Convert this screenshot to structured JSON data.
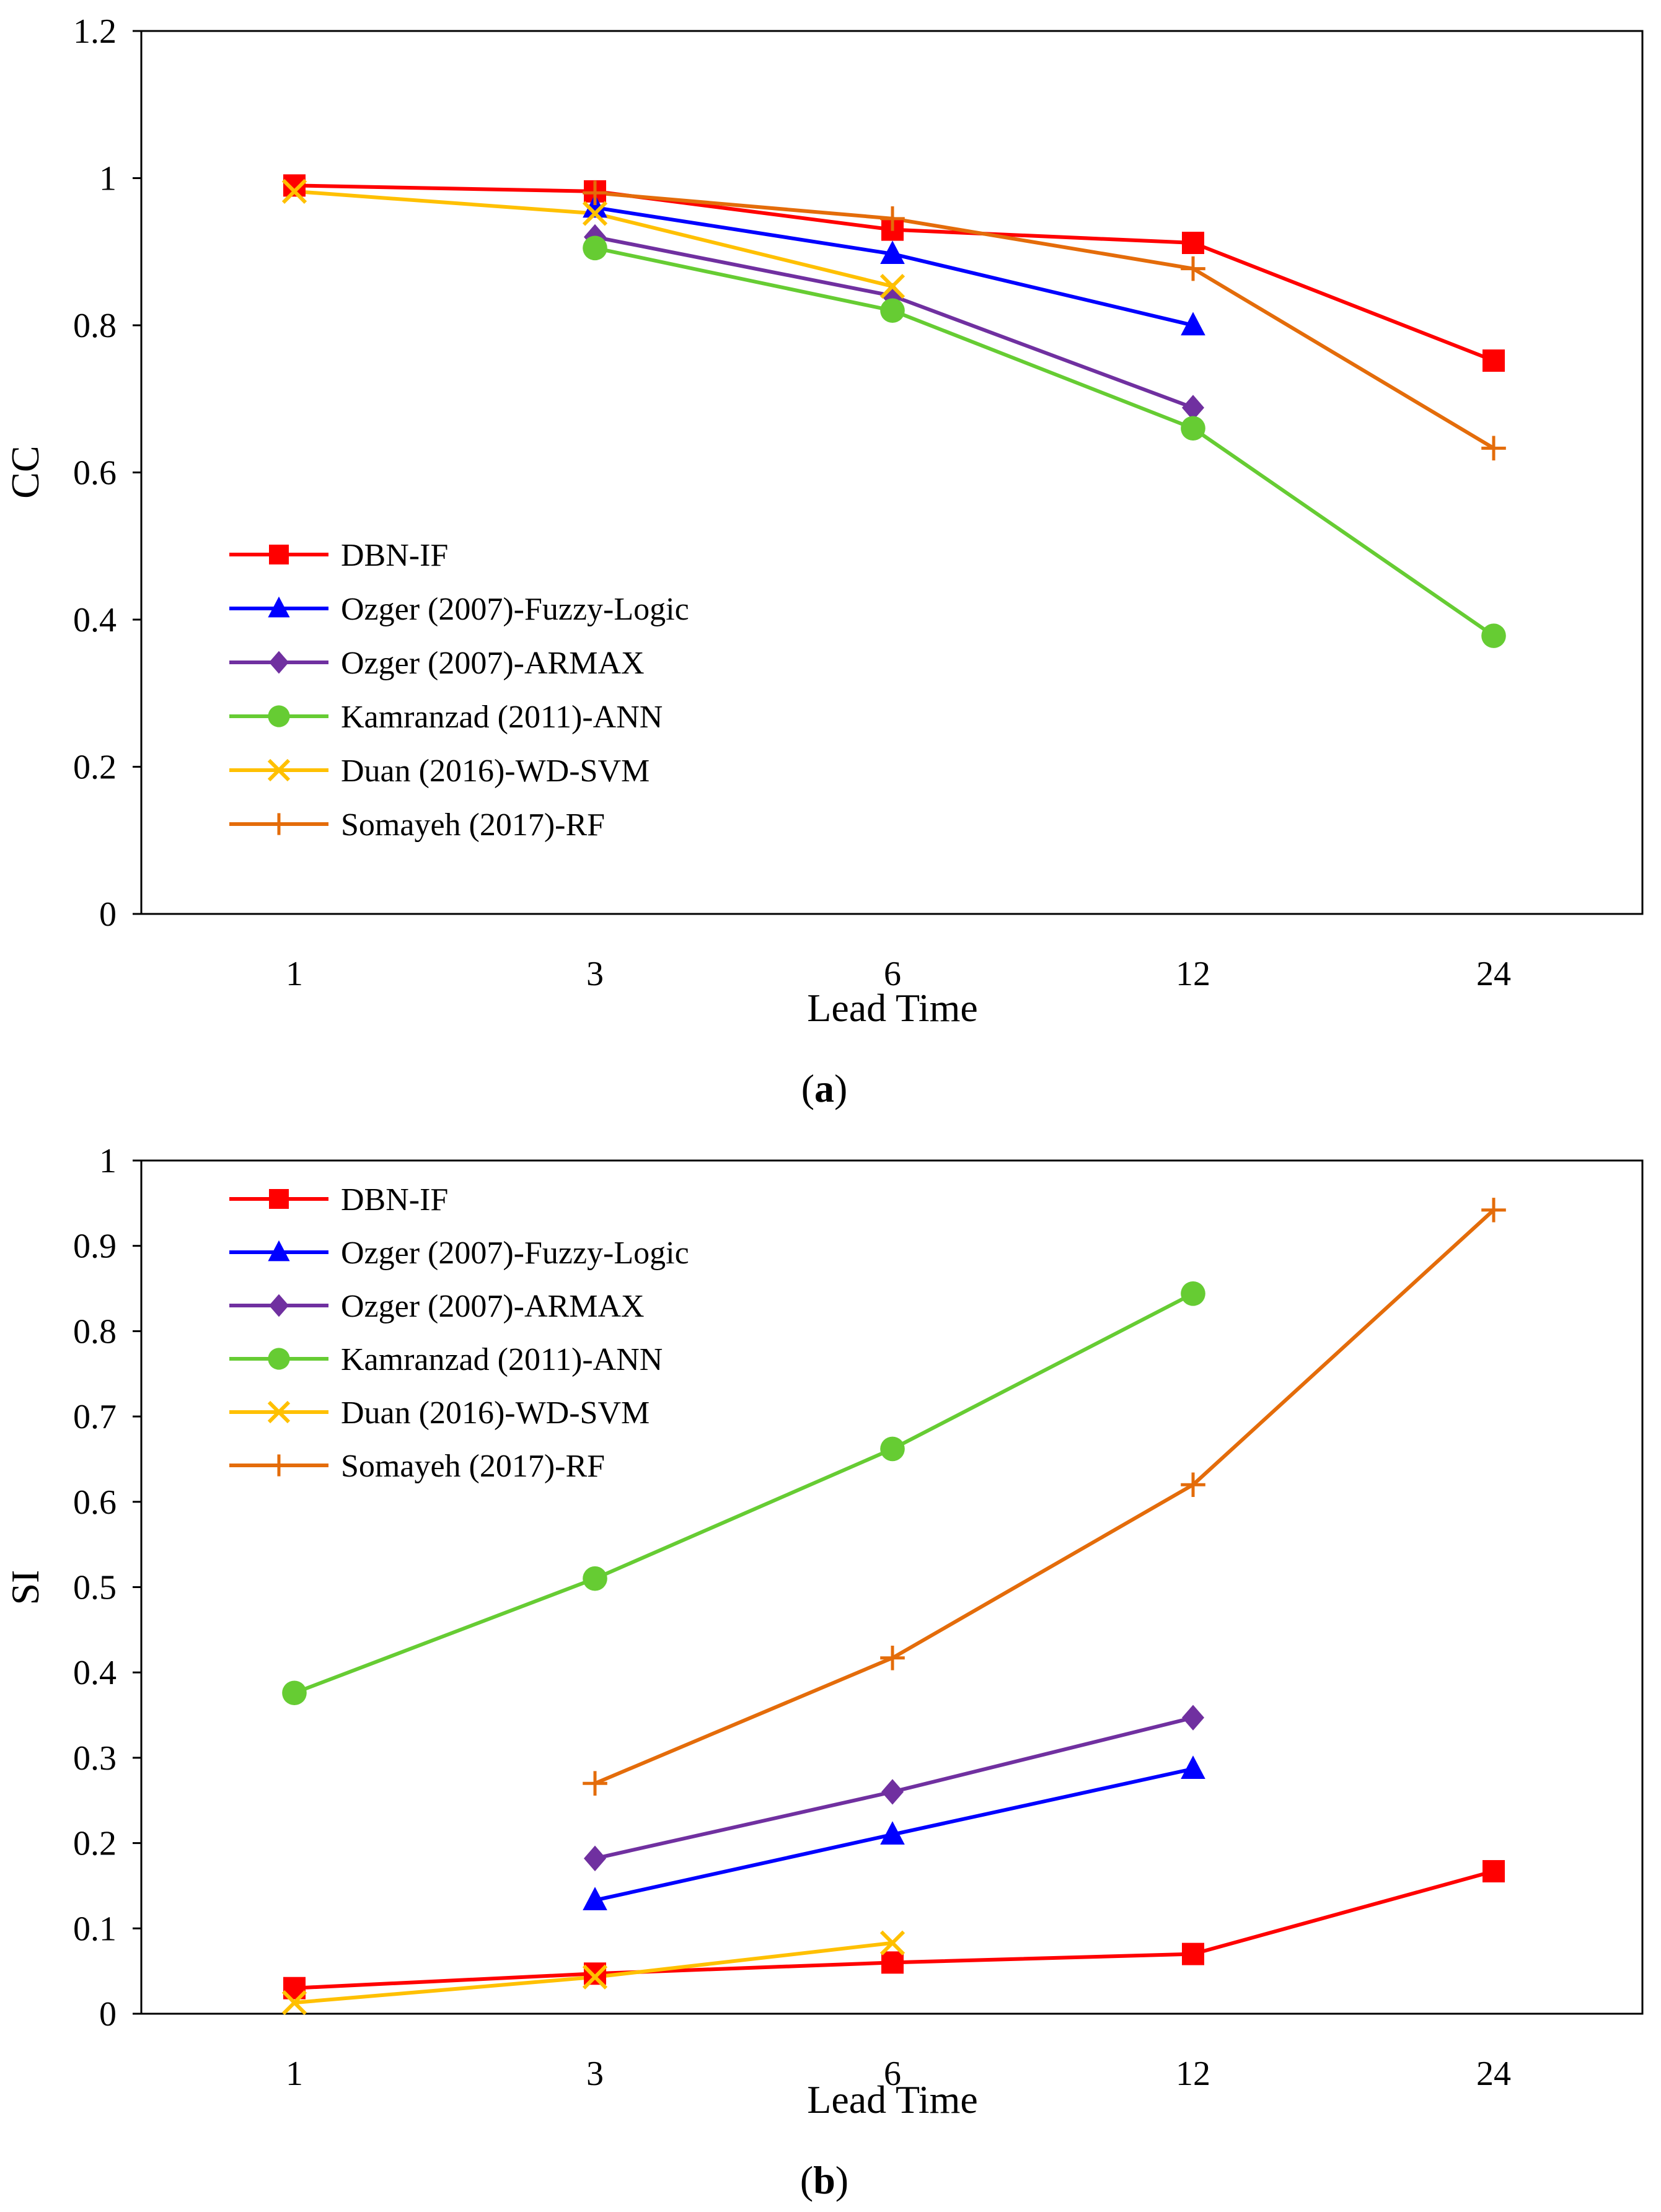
{
  "chart_data": [
    {
      "type": "line",
      "caption_open": "(",
      "caption_letter": "a",
      "caption_close": ")",
      "xlabel": "Lead Time",
      "ylabel": "CC",
      "categories": [
        "1",
        "3",
        "6",
        "12",
        "24"
      ],
      "ylim": [
        0,
        1.2
      ],
      "yticks": [
        "0",
        "0.2",
        "0.4",
        "0.6",
        "0.8",
        "1",
        "1.2"
      ],
      "legend_position": "lower-left",
      "series": [
        {
          "name": "DBN-IF",
          "color": "#ff0000",
          "marker": "square",
          "values": [
            0.99,
            0.982,
            0.93,
            0.912,
            0.752
          ]
        },
        {
          "name": "Ozger (2007)-Fuzzy-Logic",
          "color": "#0000ff",
          "marker": "triangle",
          "values": [
            null,
            0.96,
            0.897,
            0.8,
            null
          ]
        },
        {
          "name": "Ozger (2007)-ARMAX",
          "color": "#7030a0",
          "marker": "diamond",
          "values": [
            null,
            0.92,
            0.84,
            0.688,
            null
          ]
        },
        {
          "name": "Kamranzad (2011)-ANN",
          "color": "#66cc33",
          "marker": "circle",
          "values": [
            null,
            0.905,
            0.82,
            0.66,
            0.378
          ]
        },
        {
          "name": "Duan (2016)-WD-SVM",
          "color": "#ffc000",
          "marker": "x",
          "values": [
            0.982,
            0.952,
            0.853,
            null,
            null
          ]
        },
        {
          "name": "Somayeh (2017)-RF",
          "color": "#e46c0a",
          "marker": "plus",
          "values": [
            null,
            0.98,
            0.945,
            0.877,
            0.633
          ]
        }
      ]
    },
    {
      "type": "line",
      "caption_open": "(",
      "caption_letter": "b",
      "caption_close": ")",
      "xlabel": "Lead Time",
      "ylabel": "SI",
      "categories": [
        "1",
        "3",
        "6",
        "12",
        "24"
      ],
      "ylim": [
        0,
        1
      ],
      "yticks": [
        "0",
        "0.1",
        "0.2",
        "0.3",
        "0.4",
        "0.5",
        "0.6",
        "0.7",
        "0.8",
        "0.9",
        "1"
      ],
      "legend_position": "top-left",
      "series": [
        {
          "name": "DBN-IF",
          "color": "#ff0000",
          "marker": "square",
          "values": [
            0.03,
            0.047,
            0.06,
            0.07,
            0.167
          ]
        },
        {
          "name": "Ozger (2007)-Fuzzy-Logic",
          "color": "#0000ff",
          "marker": "triangle",
          "values": [
            null,
            0.133,
            0.21,
            0.287,
            null
          ]
        },
        {
          "name": "Ozger (2007)-ARMAX",
          "color": "#7030a0",
          "marker": "diamond",
          "values": [
            null,
            0.182,
            0.26,
            0.347,
            null
          ]
        },
        {
          "name": "Kamranzad (2011)-ANN",
          "color": "#66cc33",
          "marker": "circle",
          "values": [
            0.376,
            0.51,
            0.662,
            0.844,
            null
          ]
        },
        {
          "name": "Duan (2016)-WD-SVM",
          "color": "#ffc000",
          "marker": "x",
          "values": [
            0.013,
            0.043,
            0.083,
            null,
            null
          ]
        },
        {
          "name": "Somayeh (2017)-RF",
          "color": "#e46c0a",
          "marker": "plus",
          "values": [
            null,
            0.27,
            0.417,
            0.62,
            0.942
          ]
        }
      ]
    }
  ]
}
